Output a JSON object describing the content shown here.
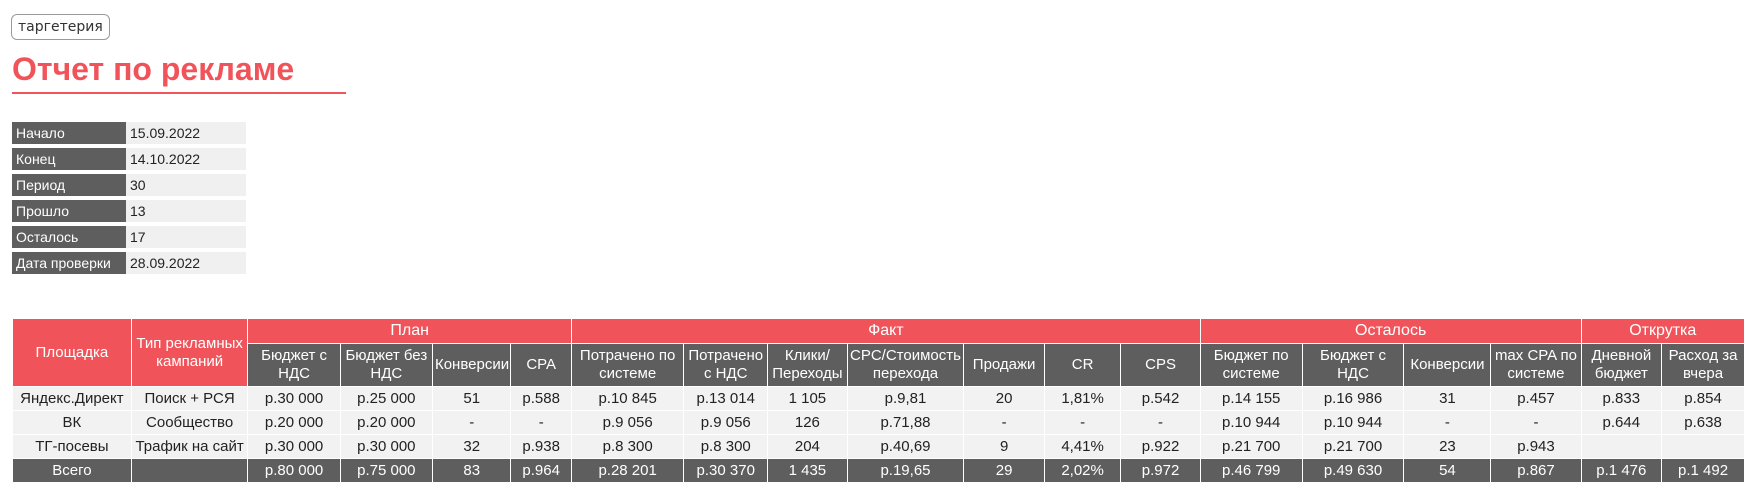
{
  "brand": "таргетерия",
  "title": "Отчет по рекламе",
  "info": [
    {
      "label": "Начало",
      "value": "15.09.2022"
    },
    {
      "label": "Конец",
      "value": "14.10.2022"
    },
    {
      "label": "Период",
      "value": "30"
    },
    {
      "label": "Прошло",
      "value": "13"
    },
    {
      "label": "Осталось",
      "value": "17"
    },
    {
      "label": "Дата проверки",
      "value": "28.09.2022"
    }
  ],
  "table": {
    "lead_headers": [
      "Площадка",
      "Тип рекламных кампаний"
    ],
    "groups": [
      "План",
      "Факт",
      "Осталось",
      "Открутка"
    ],
    "subheaders": [
      "Бюджет с НДС",
      "Бюджет без НДС",
      "Конверсии",
      "CPA",
      "Потрачено по системе",
      "Потрачено с НДС",
      "Клики/Пере­ходы",
      "CPC/Стоимость перехода",
      "Продажи",
      "CR",
      "CPS",
      "Бюджет по системе",
      "Бюджет с НДС",
      "Конверсии",
      "max CPA по системе",
      "Дневной бюджет",
      "Расход за вчера"
    ],
    "rows": [
      [
        "Яндекс.Директ",
        "Поиск + РСЯ",
        "р.30 000",
        "р.25 000",
        "51",
        "р.588",
        "р.10 845",
        "р.13 014",
        "1 105",
        "р.9,81",
        "20",
        "1,81%",
        "р.542",
        "р.14 155",
        "р.16 986",
        "31",
        "р.457",
        "р.833",
        "р.854"
      ],
      [
        "ВК",
        "Сообщество",
        "р.20 000",
        "р.20 000",
        "-",
        "-",
        "р.9 056",
        "р.9 056",
        "126",
        "р.71,88",
        "-",
        "-",
        "-",
        "р.10 944",
        "р.10 944",
        "-",
        "-",
        "р.644",
        "р.638"
      ],
      [
        "ТГ-посевы",
        "Трафик на сайт",
        "р.30 000",
        "р.30 000",
        "32",
        "р.938",
        "р.8 300",
        "р.8 300",
        "204",
        "р.40,69",
        "9",
        "4,41%",
        "р.922",
        "р.21 700",
        "р.21 700",
        "23",
        "р.943",
        "",
        ""
      ]
    ],
    "total": [
      "Всего",
      "",
      "р.80 000",
      "р.75 000",
      "83",
      "р.964",
      "р.28 201",
      "р.30 370",
      "1 435",
      "р.19,65",
      "29",
      "2,02%",
      "р.972",
      "р.46 799",
      "р.49 630",
      "54",
      "р.867",
      "р.1 476",
      "р.1 492"
    ]
  }
}
